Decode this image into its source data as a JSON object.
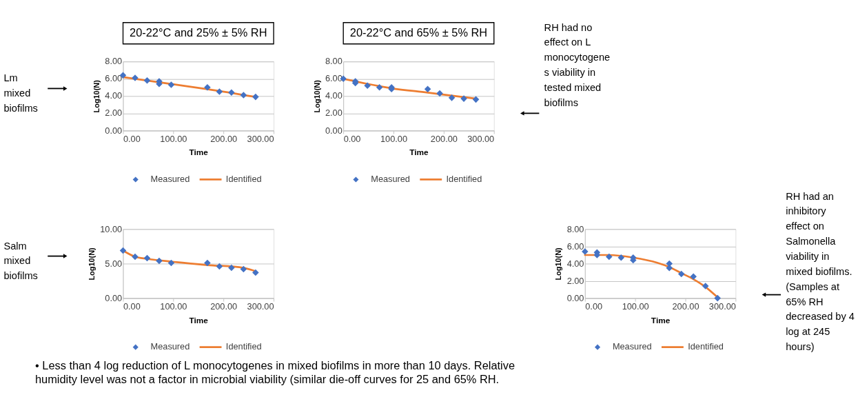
{
  "chart_data": [
    {
      "type": "scatter",
      "title": "20-22°C and 25% ± 5% RH",
      "xlabel": "Time",
      "ylabel": "Log10(N)",
      "xlim": [
        0,
        300
      ],
      "ylim": [
        0,
        8
      ],
      "xticks": [
        {
          "value": 0,
          "label": "0.00"
        },
        {
          "value": 100,
          "label": "100.00"
        },
        {
          "value": 200,
          "label": "200.00"
        },
        {
          "value": 300,
          "label": "300.00"
        }
      ],
      "yticks": [
        {
          "value": 0,
          "label": "0.00"
        },
        {
          "value": 2,
          "label": "2.00"
        },
        {
          "value": 4,
          "label": "4.00"
        },
        {
          "value": 6,
          "label": "6.00"
        },
        {
          "value": 8,
          "label": "8.00"
        }
      ],
      "grid": "y",
      "legend": "bottom",
      "annotations": [
        "Lm\nmixed\nbiofilms"
      ],
      "series": [
        {
          "name": "Measured",
          "marker": "diamond",
          "color": "#4472c4",
          "x": [
            0,
            24,
            48,
            72,
            72,
            96,
            168,
            192,
            216,
            240,
            264
          ],
          "values": [
            6.4,
            6.1,
            5.8,
            5.7,
            5.4,
            5.3,
            5.0,
            4.5,
            4.4,
            4.1,
            3.9
          ]
        },
        {
          "name": "Identified",
          "type": "line",
          "line_style": "solid",
          "color": "#ed7d31",
          "x": [
            0,
            96,
            168,
            264
          ],
          "values": [
            6.2,
            5.4,
            4.8,
            3.9
          ]
        }
      ]
    },
    {
      "type": "scatter",
      "title": "20-22°C and 65% ± 5% RH",
      "xlabel": "Time",
      "ylabel": "Log10(N)",
      "xlim": [
        0,
        300
      ],
      "ylim": [
        0,
        8
      ],
      "xticks": [
        {
          "value": 0,
          "label": "0.00"
        },
        {
          "value": 100,
          "label": "100.00"
        },
        {
          "value": 200,
          "label": "200.00"
        },
        {
          "value": 300,
          "label": "300.00"
        }
      ],
      "yticks": [
        {
          "value": 0,
          "label": "0.00"
        },
        {
          "value": 2,
          "label": "2.00"
        },
        {
          "value": 4,
          "label": "4.00"
        },
        {
          "value": 6,
          "label": "6.00"
        },
        {
          "value": 8,
          "label": "8.00"
        }
      ],
      "grid": "y",
      "legend": "bottom",
      "annotations": [
        "RH had no\neffect on L\nmonocytogene\ns viability in\ntested mixed\nbiofilms"
      ],
      "series": [
        {
          "name": "Measured",
          "marker": "diamond",
          "color": "#4472c4",
          "x": [
            0,
            24,
            24,
            48,
            72,
            96,
            96,
            168,
            192,
            216,
            240,
            264
          ],
          "values": [
            6.0,
            5.7,
            5.5,
            5.2,
            5.0,
            5.0,
            4.8,
            4.8,
            4.3,
            3.8,
            3.7,
            3.6
          ]
        },
        {
          "name": "Identified",
          "type": "line",
          "line_style": "solid",
          "color": "#ed7d31",
          "x": [
            0,
            96,
            168,
            264
          ],
          "values": [
            6.0,
            4.9,
            4.4,
            3.7
          ]
        }
      ]
    },
    {
      "type": "scatter",
      "xlabel": "Time",
      "ylabel": "Log10(N)",
      "xlim": [
        0,
        300
      ],
      "ylim": [
        0,
        10
      ],
      "xticks": [
        {
          "value": 0,
          "label": "0.00"
        },
        {
          "value": 100,
          "label": "100.00"
        },
        {
          "value": 200,
          "label": "200.00"
        },
        {
          "value": 300,
          "label": "300.00"
        }
      ],
      "yticks": [
        {
          "value": 0,
          "label": "0.00"
        },
        {
          "value": 5,
          "label": "5.00"
        },
        {
          "value": 10,
          "label": "10.00"
        }
      ],
      "grid": "y",
      "legend": "bottom",
      "annotations": [
        "Salm\nmixed\nbiofilms",
        "• Less than 4 log reduction of L monocytogenes in mixed biofilms in more than 10 days. Relative\nhumidity level was not a factor in microbial viability (similar die-off curves for 25 and 65% RH."
      ],
      "series": [
        {
          "name": "Measured",
          "marker": "diamond",
          "color": "#4472c4",
          "x": [
            0,
            24,
            48,
            72,
            96,
            168,
            192,
            216,
            240,
            264
          ],
          "values": [
            6.9,
            6.0,
            5.8,
            5.4,
            5.1,
            5.1,
            4.6,
            4.4,
            4.2,
            3.7
          ]
        },
        {
          "name": "Identified",
          "type": "line",
          "line_style": "solid",
          "color": "#ed7d31",
          "x": [
            0,
            24,
            48,
            96,
            168,
            240,
            264
          ],
          "values": [
            6.9,
            6.0,
            5.7,
            5.3,
            4.8,
            4.4,
            3.9
          ]
        }
      ]
    },
    {
      "type": "scatter",
      "xlabel": "Time",
      "ylabel": "Log10(N)",
      "xlim": [
        0,
        300
      ],
      "ylim": [
        0,
        8
      ],
      "xticks": [
        {
          "value": 0,
          "label": "0.00"
        },
        {
          "value": 100,
          "label": "100.00"
        },
        {
          "value": 200,
          "label": "200.00"
        },
        {
          "value": 300,
          "label": "300.00"
        }
      ],
      "yticks": [
        {
          "value": 0,
          "label": "0.00"
        },
        {
          "value": 2,
          "label": "2.00"
        },
        {
          "value": 4,
          "label": "4.00"
        },
        {
          "value": 6,
          "label": "6.00"
        },
        {
          "value": 8,
          "label": "8.00"
        }
      ],
      "grid": "y",
      "legend": "bottom",
      "annotations": [
        "RH had an\ninhibitory\neffect on\nSalmonella\nviability in\nmixed biofilms.\n(Samples at\n65% RH\ndecreased by 4\nlog at 245\nhours)"
      ],
      "series": [
        {
          "name": "Measured",
          "marker": "diamond",
          "color": "#4472c4",
          "x": [
            0,
            24,
            24,
            48,
            72,
            96,
            96,
            168,
            168,
            192,
            216,
            240,
            264
          ],
          "values": [
            5.4,
            5.3,
            5.0,
            4.8,
            4.7,
            4.7,
            4.4,
            4.0,
            3.5,
            2.8,
            2.5,
            1.4,
            0.0
          ]
        },
        {
          "name": "Identified",
          "type": "line",
          "line_style": "solid",
          "color": "#ed7d31",
          "x": [
            0,
            48,
            96,
            144,
            168,
            192,
            216,
            240,
            264
          ],
          "values": [
            5.0,
            5.0,
            4.7,
            4.1,
            3.6,
            2.9,
            2.2,
            1.3,
            0.1
          ]
        }
      ]
    }
  ]
}
